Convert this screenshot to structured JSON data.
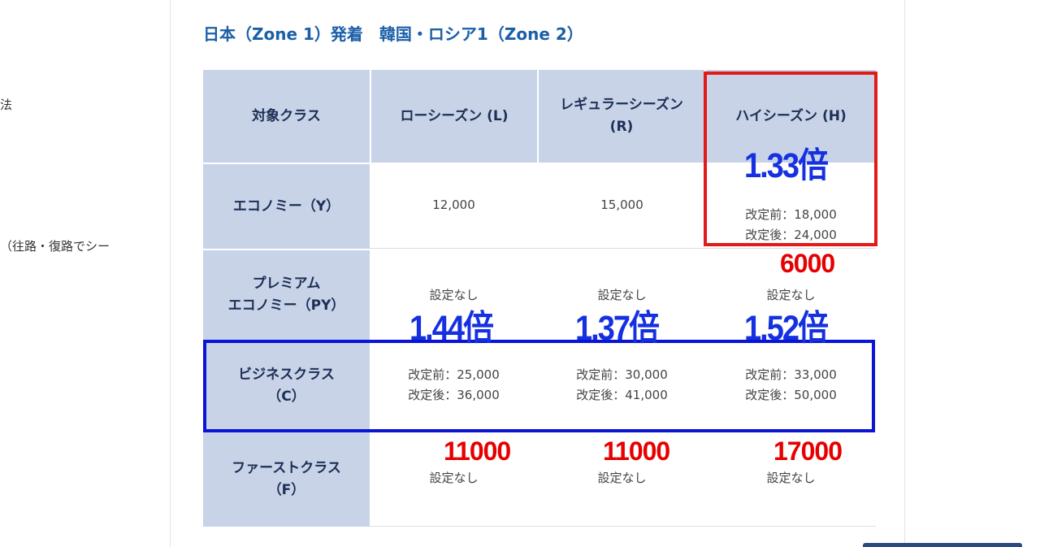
{
  "sidebar_fragments": [
    "法",
    "（往路・復路でシー"
  ],
  "title": "日本（Zone 1）発着　韓国・ロシア1（Zone 2）",
  "table": {
    "headers": [
      "対象クラス",
      "ローシーズン (L)",
      "レギュラーシーズン\n(R)",
      "ハイシーズン (H)"
    ],
    "rows": [
      {
        "class": "エコノミー（Y）",
        "low": "12,000",
        "regular": "15,000",
        "high": "改定前：18,000\n改定後：24,000"
      },
      {
        "class": "プレミアム\nエコノミー（PY）",
        "low": "設定なし",
        "regular": "設定なし",
        "high": "設定なし"
      },
      {
        "class": "ビジネスクラス\n（C）",
        "low": "改定前：25,000\n改定後：36,000",
        "regular": "改定前：30,000\n改定後：41,000",
        "high": "改定前：33,000\n改定後：50,000"
      },
      {
        "class": "ファーストクラス\n（F）",
        "low": "設定なし",
        "regular": "設定なし",
        "high": "設定なし"
      }
    ]
  },
  "annotations": {
    "high_economy_ratio": "1.33倍",
    "high_economy_diff": "6000",
    "business_low_ratio": "1.44倍",
    "business_regular_ratio": "1.37倍",
    "business_high_ratio": "1.52倍",
    "business_low_diff": "11000",
    "business_regular_diff": "11000",
    "business_high_diff": "17000",
    "red_box_color": "#e21a1a",
    "blue_box_color": "#0a14d6"
  }
}
